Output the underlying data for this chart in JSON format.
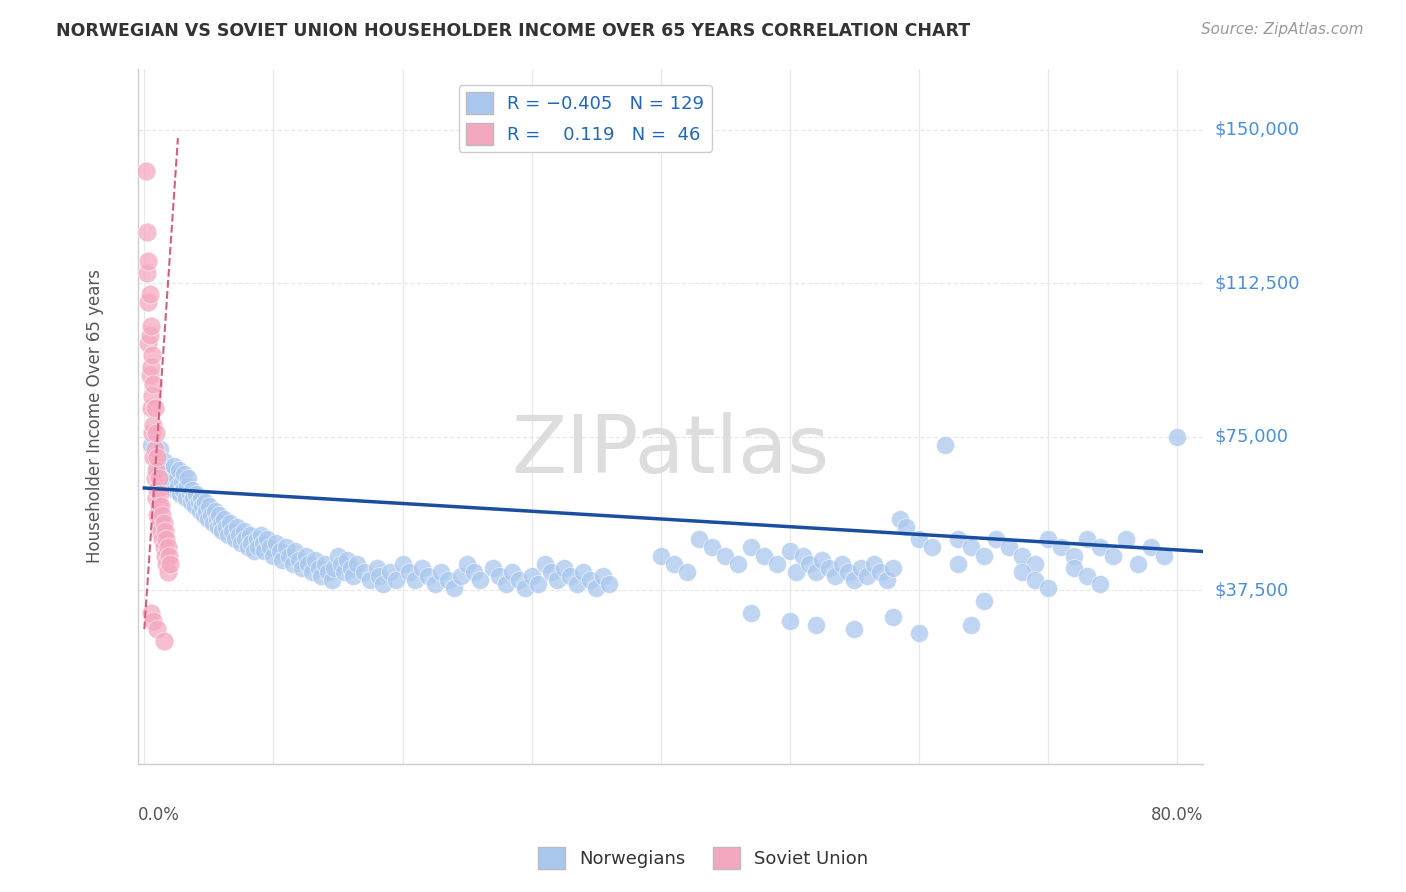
{
  "title": "NORWEGIAN VS SOVIET UNION HOUSEHOLDER INCOME OVER 65 YEARS CORRELATION CHART",
  "source": "Source: ZipAtlas.com",
  "ylabel": "Householder Income Over 65 years",
  "ytick_values": [
    37500,
    75000,
    112500,
    150000
  ],
  "ytick_labels": [
    "$37,500",
    "$75,000",
    "$112,500",
    "$150,000"
  ],
  "ylim": [
    -5000,
    165000
  ],
  "xlim": [
    -0.005,
    0.82
  ],
  "watermark_text": "ZIPatlas",
  "norwegian_color": "#aac8ee",
  "soviet_color": "#f4a8c0",
  "trend_norwegian_color": "#1a4fa0",
  "trend_soviet_color": "#d06080",
  "background_color": "#ffffff",
  "grid_color": "#e8e8e8",
  "title_color": "#333333",
  "source_color": "#999999",
  "ylabel_color": "#555555",
  "tick_label_color": "#4a90d9",
  "bottom_label_color": "#555555",
  "legend_label_color": "#2266bb",
  "norwegian_points": [
    [
      0.005,
      73000
    ],
    [
      0.008,
      70000
    ],
    [
      0.01,
      68000
    ],
    [
      0.012,
      72000
    ],
    [
      0.013,
      65000
    ],
    [
      0.015,
      69000
    ],
    [
      0.016,
      67000
    ],
    [
      0.018,
      65000
    ],
    [
      0.019,
      63000
    ],
    [
      0.02,
      66000
    ],
    [
      0.022,
      64000
    ],
    [
      0.023,
      68000
    ],
    [
      0.024,
      62000
    ],
    [
      0.025,
      65000
    ],
    [
      0.026,
      63000
    ],
    [
      0.027,
      67000
    ],
    [
      0.028,
      61000
    ],
    [
      0.029,
      64000
    ],
    [
      0.03,
      62000
    ],
    [
      0.031,
      66000
    ],
    [
      0.032,
      60000
    ],
    [
      0.033,
      63000
    ],
    [
      0.034,
      65000
    ],
    [
      0.035,
      61000
    ],
    [
      0.036,
      59000
    ],
    [
      0.037,
      62000
    ],
    [
      0.038,
      60000
    ],
    [
      0.039,
      58000
    ],
    [
      0.04,
      61000
    ],
    [
      0.042,
      59000
    ],
    [
      0.043,
      57000
    ],
    [
      0.044,
      60000
    ],
    [
      0.045,
      58000
    ],
    [
      0.046,
      56000
    ],
    [
      0.047,
      59000
    ],
    [
      0.048,
      57000
    ],
    [
      0.049,
      55000
    ],
    [
      0.05,
      58000
    ],
    [
      0.052,
      56000
    ],
    [
      0.053,
      54000
    ],
    [
      0.055,
      57000
    ],
    [
      0.056,
      55000
    ],
    [
      0.057,
      53000
    ],
    [
      0.058,
      56000
    ],
    [
      0.059,
      54000
    ],
    [
      0.06,
      52000
    ],
    [
      0.062,
      55000
    ],
    [
      0.063,
      53000
    ],
    [
      0.065,
      51000
    ],
    [
      0.066,
      54000
    ],
    [
      0.068,
      52000
    ],
    [
      0.07,
      50000
    ],
    [
      0.072,
      53000
    ],
    [
      0.073,
      51000
    ],
    [
      0.075,
      49000
    ],
    [
      0.077,
      52000
    ],
    [
      0.078,
      50000
    ],
    [
      0.08,
      48000
    ],
    [
      0.082,
      51000
    ],
    [
      0.083,
      49000
    ],
    [
      0.085,
      47000
    ],
    [
      0.087,
      50000
    ],
    [
      0.088,
      48000
    ],
    [
      0.09,
      51000
    ],
    [
      0.092,
      49000
    ],
    [
      0.093,
      47000
    ],
    [
      0.095,
      50000
    ],
    [
      0.097,
      48000
    ],
    [
      0.1,
      46000
    ],
    [
      0.102,
      49000
    ],
    [
      0.105,
      47000
    ],
    [
      0.107,
      45000
    ],
    [
      0.11,
      48000
    ],
    [
      0.112,
      46000
    ],
    [
      0.115,
      44000
    ],
    [
      0.117,
      47000
    ],
    [
      0.12,
      45000
    ],
    [
      0.122,
      43000
    ],
    [
      0.125,
      46000
    ],
    [
      0.127,
      44000
    ],
    [
      0.13,
      42000
    ],
    [
      0.132,
      45000
    ],
    [
      0.135,
      43000
    ],
    [
      0.137,
      41000
    ],
    [
      0.14,
      44000
    ],
    [
      0.142,
      42000
    ],
    [
      0.145,
      40000
    ],
    [
      0.147,
      43000
    ],
    [
      0.15,
      46000
    ],
    [
      0.152,
      44000
    ],
    [
      0.155,
      42000
    ],
    [
      0.157,
      45000
    ],
    [
      0.16,
      43000
    ],
    [
      0.162,
      41000
    ],
    [
      0.165,
      44000
    ],
    [
      0.17,
      42000
    ],
    [
      0.175,
      40000
    ],
    [
      0.18,
      43000
    ],
    [
      0.182,
      41000
    ],
    [
      0.185,
      39000
    ],
    [
      0.19,
      42000
    ],
    [
      0.195,
      40000
    ],
    [
      0.2,
      44000
    ],
    [
      0.205,
      42000
    ],
    [
      0.21,
      40000
    ],
    [
      0.215,
      43000
    ],
    [
      0.22,
      41000
    ],
    [
      0.225,
      39000
    ],
    [
      0.23,
      42000
    ],
    [
      0.235,
      40000
    ],
    [
      0.24,
      38000
    ],
    [
      0.245,
      41000
    ],
    [
      0.25,
      44000
    ],
    [
      0.255,
      42000
    ],
    [
      0.26,
      40000
    ],
    [
      0.27,
      43000
    ],
    [
      0.275,
      41000
    ],
    [
      0.28,
      39000
    ],
    [
      0.285,
      42000
    ],
    [
      0.29,
      40000
    ],
    [
      0.295,
      38000
    ],
    [
      0.3,
      41000
    ],
    [
      0.305,
      39000
    ],
    [
      0.31,
      44000
    ],
    [
      0.315,
      42000
    ],
    [
      0.32,
      40000
    ],
    [
      0.325,
      43000
    ],
    [
      0.33,
      41000
    ],
    [
      0.335,
      39000
    ],
    [
      0.34,
      42000
    ],
    [
      0.345,
      40000
    ],
    [
      0.35,
      38000
    ],
    [
      0.355,
      41000
    ],
    [
      0.36,
      39000
    ],
    [
      0.4,
      46000
    ],
    [
      0.41,
      44000
    ],
    [
      0.42,
      42000
    ],
    [
      0.43,
      50000
    ],
    [
      0.44,
      48000
    ],
    [
      0.45,
      46000
    ],
    [
      0.46,
      44000
    ],
    [
      0.47,
      48000
    ],
    [
      0.48,
      46000
    ],
    [
      0.49,
      44000
    ],
    [
      0.5,
      47000
    ],
    [
      0.505,
      42000
    ],
    [
      0.51,
      46000
    ],
    [
      0.515,
      44000
    ],
    [
      0.52,
      42000
    ],
    [
      0.525,
      45000
    ],
    [
      0.53,
      43000
    ],
    [
      0.535,
      41000
    ],
    [
      0.54,
      44000
    ],
    [
      0.545,
      42000
    ],
    [
      0.55,
      40000
    ],
    [
      0.555,
      43000
    ],
    [
      0.56,
      41000
    ],
    [
      0.565,
      44000
    ],
    [
      0.57,
      42000
    ],
    [
      0.575,
      40000
    ],
    [
      0.58,
      43000
    ],
    [
      0.585,
      55000
    ],
    [
      0.59,
      53000
    ],
    [
      0.6,
      50000
    ],
    [
      0.61,
      48000
    ],
    [
      0.62,
      73000
    ],
    [
      0.63,
      50000
    ],
    [
      0.64,
      48000
    ],
    [
      0.65,
      46000
    ],
    [
      0.66,
      50000
    ],
    [
      0.67,
      48000
    ],
    [
      0.68,
      46000
    ],
    [
      0.69,
      44000
    ],
    [
      0.7,
      50000
    ],
    [
      0.71,
      48000
    ],
    [
      0.72,
      46000
    ],
    [
      0.73,
      50000
    ],
    [
      0.74,
      48000
    ],
    [
      0.75,
      46000
    ],
    [
      0.76,
      50000
    ],
    [
      0.77,
      44000
    ],
    [
      0.78,
      48000
    ],
    [
      0.79,
      46000
    ],
    [
      0.8,
      75000
    ],
    [
      0.5,
      30000
    ],
    [
      0.55,
      28000
    ],
    [
      0.47,
      32000
    ],
    [
      0.52,
      29000
    ],
    [
      0.58,
      31000
    ],
    [
      0.6,
      27000
    ],
    [
      0.63,
      44000
    ],
    [
      0.64,
      29000
    ],
    [
      0.65,
      35000
    ],
    [
      0.68,
      42000
    ],
    [
      0.69,
      40000
    ],
    [
      0.7,
      38000
    ],
    [
      0.72,
      43000
    ],
    [
      0.73,
      41000
    ],
    [
      0.74,
      39000
    ]
  ],
  "soviet_points": [
    [
      0.001,
      140000
    ],
    [
      0.002,
      125000
    ],
    [
      0.002,
      115000
    ],
    [
      0.003,
      118000
    ],
    [
      0.003,
      108000
    ],
    [
      0.003,
      98000
    ],
    [
      0.004,
      110000
    ],
    [
      0.004,
      100000
    ],
    [
      0.004,
      90000
    ],
    [
      0.005,
      102000
    ],
    [
      0.005,
      92000
    ],
    [
      0.005,
      82000
    ],
    [
      0.006,
      95000
    ],
    [
      0.006,
      85000
    ],
    [
      0.006,
      76000
    ],
    [
      0.007,
      88000
    ],
    [
      0.007,
      78000
    ],
    [
      0.007,
      70000
    ],
    [
      0.008,
      82000
    ],
    [
      0.008,
      72000
    ],
    [
      0.008,
      65000
    ],
    [
      0.009,
      76000
    ],
    [
      0.009,
      67000
    ],
    [
      0.009,
      60000
    ],
    [
      0.01,
      70000
    ],
    [
      0.01,
      62000
    ],
    [
      0.01,
      56000
    ],
    [
      0.011,
      65000
    ],
    [
      0.011,
      58000
    ],
    [
      0.011,
      52000
    ],
    [
      0.012,
      61000
    ],
    [
      0.012,
      55000
    ],
    [
      0.013,
      58000
    ],
    [
      0.013,
      52000
    ],
    [
      0.014,
      56000
    ],
    [
      0.014,
      50000
    ],
    [
      0.015,
      54000
    ],
    [
      0.015,
      48000
    ],
    [
      0.016,
      52000
    ],
    [
      0.016,
      46000
    ],
    [
      0.017,
      50000
    ],
    [
      0.017,
      44000
    ],
    [
      0.018,
      48000
    ],
    [
      0.018,
      42000
    ],
    [
      0.019,
      46000
    ],
    [
      0.02,
      44000
    ],
    [
      0.005,
      32000
    ],
    [
      0.007,
      30000
    ],
    [
      0.01,
      28000
    ],
    [
      0.015,
      25000
    ]
  ]
}
